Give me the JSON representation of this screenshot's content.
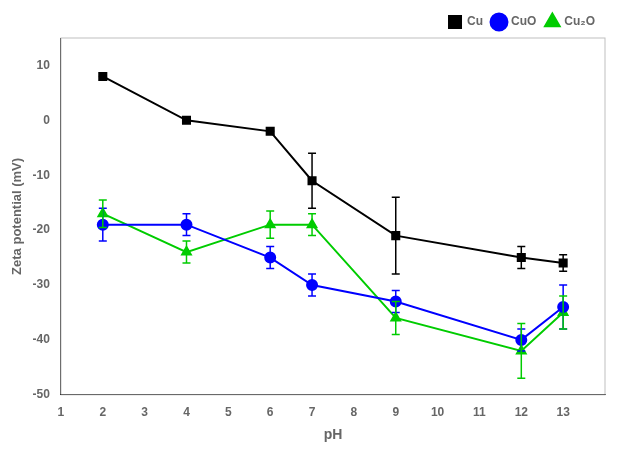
{
  "chart_data": {
    "type": "line",
    "x": [
      2,
      4,
      6,
      7,
      9,
      12,
      13
    ],
    "series": [
      {
        "name": "Cu",
        "color": "#000000",
        "marker": "square",
        "values": [
          8,
          0,
          -2,
          -11,
          -21,
          -25,
          -26
        ],
        "yerr": [
          0,
          0,
          0,
          5,
          7,
          2,
          1.5
        ]
      },
      {
        "name": "CuO",
        "color": "#0000FF",
        "marker": "circle",
        "values": [
          -19,
          -19,
          -25,
          -30,
          -33,
          -40,
          -34
        ],
        "yerr": [
          3,
          2,
          2,
          2,
          2,
          2,
          4
        ]
      },
      {
        "name": "Cu₂O",
        "color": "#00CC00",
        "marker": "triangle",
        "values": [
          -17,
          -24,
          -19,
          -19,
          -36,
          -42,
          -35
        ],
        "yerr": [
          2.5,
          2,
          2.5,
          2,
          3,
          5,
          3
        ]
      }
    ],
    "xlabel": "pH",
    "ylabel": "Zeta potential (mV)",
    "xlim": [
      1,
      14
    ],
    "ylim": [
      -50,
      15
    ],
    "xticks": [
      1,
      2,
      3,
      4,
      5,
      6,
      7,
      8,
      9,
      10,
      11,
      12,
      13
    ],
    "yticks": [
      -50,
      -40,
      -30,
      -20,
      -10,
      0,
      10
    ],
    "grid": false,
    "legend": "upper right"
  }
}
